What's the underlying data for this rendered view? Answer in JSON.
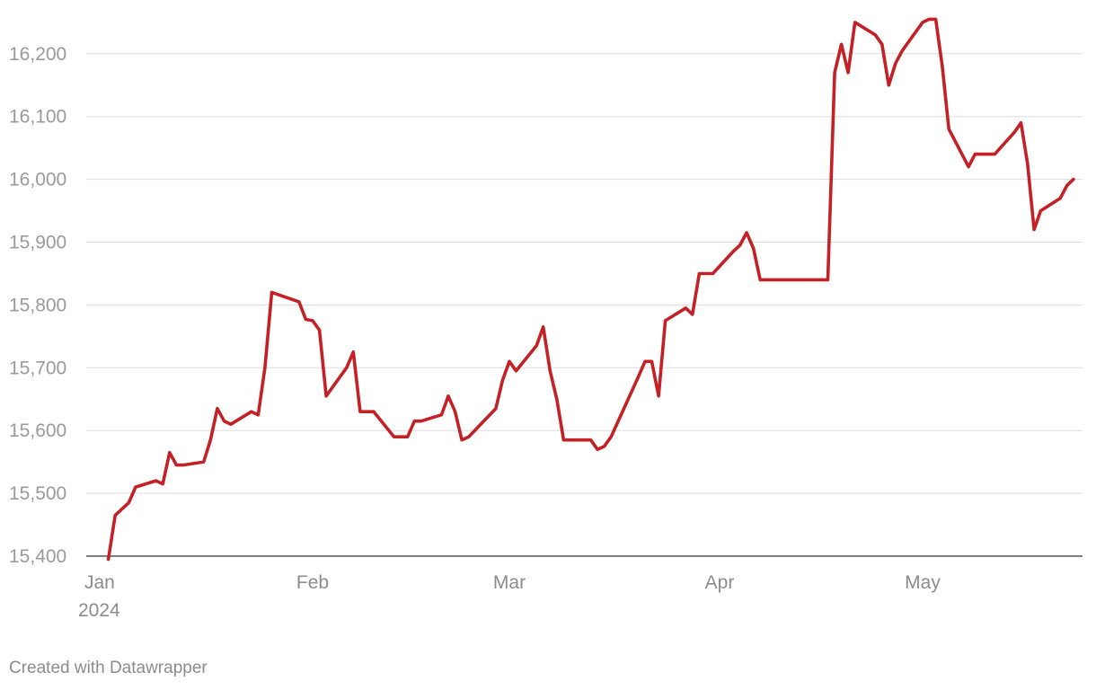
{
  "chart_data": {
    "type": "line",
    "title": "",
    "xlabel": "",
    "ylabel": "",
    "ylim": [
      15400,
      16250
    ],
    "y_ticks": [
      15400,
      15500,
      15600,
      15700,
      15800,
      15900,
      16000,
      16100,
      16200
    ],
    "y_tick_labels": [
      "15,400",
      "15,500",
      "15,600",
      "15,700",
      "15,800",
      "15,900",
      "16,000",
      "16,100",
      "16,200"
    ],
    "x_ticks": [
      {
        "date": "2024-01-01",
        "label": "Jan",
        "sublabel": "2024"
      },
      {
        "date": "2024-02-01",
        "label": "Feb",
        "sublabel": ""
      },
      {
        "date": "2024-03-01",
        "label": "Mar",
        "sublabel": ""
      },
      {
        "date": "2024-04-01",
        "label": "Apr",
        "sublabel": ""
      },
      {
        "date": "2024-05-01",
        "label": "May",
        "sublabel": ""
      }
    ],
    "grid": true,
    "line_color": "#c42126",
    "series": [
      {
        "points": [
          [
            "2024-01-02",
            15395
          ],
          [
            "2024-01-03",
            15465
          ],
          [
            "2024-01-05",
            15485
          ],
          [
            "2024-01-06",
            15510
          ],
          [
            "2024-01-09",
            15520
          ],
          [
            "2024-01-10",
            15515
          ],
          [
            "2024-01-11",
            15565
          ],
          [
            "2024-01-12",
            15545
          ],
          [
            "2024-01-13",
            15545
          ],
          [
            "2024-01-16",
            15550
          ],
          [
            "2024-01-17",
            15585
          ],
          [
            "2024-01-18",
            15635
          ],
          [
            "2024-01-19",
            15615
          ],
          [
            "2024-01-20",
            15610
          ],
          [
            "2024-01-23",
            15630
          ],
          [
            "2024-01-24",
            15625
          ],
          [
            "2024-01-25",
            15700
          ],
          [
            "2024-01-26",
            15820
          ],
          [
            "2024-01-30",
            15805
          ],
          [
            "2024-01-31",
            15777
          ],
          [
            "2024-02-01",
            15775
          ],
          [
            "2024-02-02",
            15760
          ],
          [
            "2024-02-03",
            15655
          ],
          [
            "2024-02-06",
            15700
          ],
          [
            "2024-02-07",
            15725
          ],
          [
            "2024-02-08",
            15630
          ],
          [
            "2024-02-10",
            15630
          ],
          [
            "2024-02-13",
            15590
          ],
          [
            "2024-02-15",
            15590
          ],
          [
            "2024-02-16",
            15615
          ],
          [
            "2024-02-17",
            15615
          ],
          [
            "2024-02-20",
            15625
          ],
          [
            "2024-02-21",
            15655
          ],
          [
            "2024-02-22",
            15630
          ],
          [
            "2024-02-23",
            15585
          ],
          [
            "2024-02-24",
            15590
          ],
          [
            "2024-02-28",
            15635
          ],
          [
            "2024-02-29",
            15680
          ],
          [
            "2024-03-01",
            15710
          ],
          [
            "2024-03-02",
            15695
          ],
          [
            "2024-03-05",
            15735
          ],
          [
            "2024-03-06",
            15765
          ],
          [
            "2024-03-07",
            15695
          ],
          [
            "2024-03-08",
            15650
          ],
          [
            "2024-03-09",
            15585
          ],
          [
            "2024-03-13",
            15585
          ],
          [
            "2024-03-14",
            15570
          ],
          [
            "2024-03-15",
            15575
          ],
          [
            "2024-03-16",
            15590
          ],
          [
            "2024-03-20",
            15685
          ],
          [
            "2024-03-21",
            15710
          ],
          [
            "2024-03-22",
            15710
          ],
          [
            "2024-03-23",
            15655
          ],
          [
            "2024-03-24",
            15775
          ],
          [
            "2024-03-27",
            15795
          ],
          [
            "2024-03-28",
            15785
          ],
          [
            "2024-03-29",
            15850
          ],
          [
            "2024-03-31",
            15850
          ],
          [
            "2024-04-03",
            15885
          ],
          [
            "2024-04-04",
            15895
          ],
          [
            "2024-04-05",
            15915
          ],
          [
            "2024-04-06",
            15890
          ],
          [
            "2024-04-07",
            15840
          ],
          [
            "2024-04-17",
            15840
          ],
          [
            "2024-04-18",
            16170
          ],
          [
            "2024-04-19",
            16215
          ],
          [
            "2024-04-20",
            16170
          ],
          [
            "2024-04-21",
            16250
          ],
          [
            "2024-04-24",
            16230
          ],
          [
            "2024-04-25",
            16215
          ],
          [
            "2024-04-26",
            16150
          ],
          [
            "2024-04-27",
            16185
          ],
          [
            "2024-04-28",
            16205
          ],
          [
            "2024-05-01",
            16250
          ],
          [
            "2024-05-02",
            16255
          ],
          [
            "2024-05-03",
            16255
          ],
          [
            "2024-05-04",
            16180
          ],
          [
            "2024-05-05",
            16080
          ],
          [
            "2024-05-08",
            16020
          ],
          [
            "2024-05-09",
            16040
          ],
          [
            "2024-05-12",
            16040
          ],
          [
            "2024-05-15",
            16075
          ],
          [
            "2024-05-16",
            16090
          ],
          [
            "2024-05-17",
            16025
          ],
          [
            "2024-05-18",
            15920
          ],
          [
            "2024-05-19",
            15950
          ],
          [
            "2024-05-22",
            15970
          ],
          [
            "2024-05-23",
            15990
          ],
          [
            "2024-05-24",
            16000
          ]
        ]
      }
    ]
  },
  "footer": {
    "credit": "Created with Datawrapper"
  }
}
